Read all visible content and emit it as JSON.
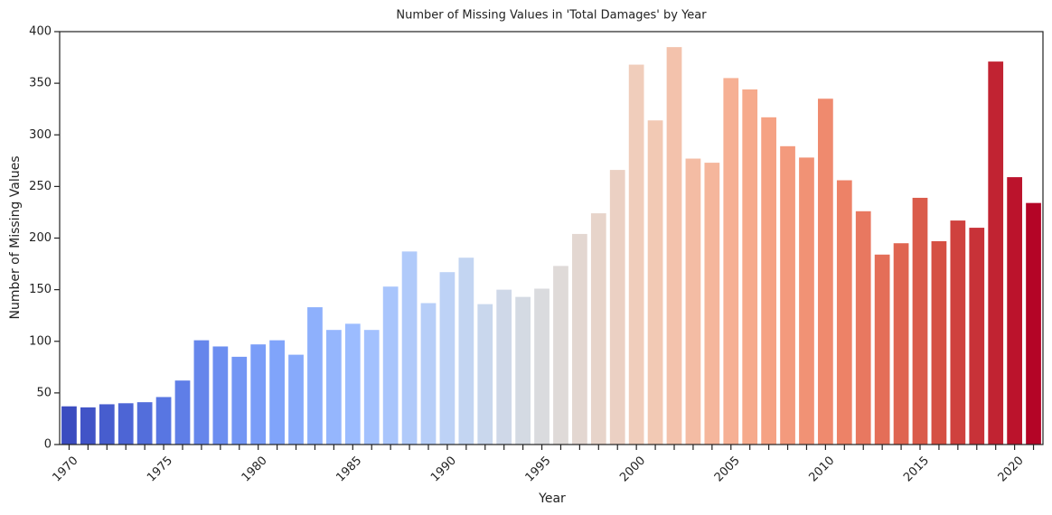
{
  "chart_data": {
    "type": "bar",
    "title": "Number of Missing Values in 'Total Damages' by Year",
    "xlabel": "Year",
    "ylabel": "Number of Missing Values",
    "categories": [
      "1970",
      null,
      null,
      null,
      null,
      "1975",
      null,
      null,
      null,
      null,
      "1980",
      null,
      null,
      null,
      null,
      "1985",
      null,
      null,
      null,
      null,
      "1990",
      null,
      null,
      null,
      null,
      "1995",
      null,
      null,
      null,
      null,
      "2000",
      null,
      null,
      null,
      null,
      "2005",
      null,
      null,
      null,
      null,
      "2010",
      null,
      null,
      null,
      null,
      "2015",
      null,
      null,
      null,
      null,
      "2020",
      null
    ],
    "values": [
      37,
      36,
      39,
      40,
      41,
      46,
      62,
      101,
      95,
      85,
      97,
      101,
      87,
      133,
      111,
      117,
      111,
      153,
      187,
      137,
      167,
      181,
      136,
      150,
      143,
      151,
      173,
      204,
      224,
      266,
      368,
      314,
      385,
      277,
      273,
      355,
      344,
      317,
      289,
      278,
      335,
      256,
      226,
      184,
      195,
      239,
      197,
      217,
      210,
      371,
      259,
      234
    ],
    "colors": [
      "#3b4cc0",
      "#5977e3",
      "#7b9ff9",
      "#9ebeff",
      "#c0d4f5",
      "#dddcdc",
      "#f2cbb7",
      "#f7ac8e",
      "#ee8468",
      "#d65244",
      "#b40426"
    ],
    "ylim": [
      0,
      400
    ],
    "yticks": [
      0,
      50,
      100,
      150,
      200,
      250,
      300,
      350,
      400
    ]
  }
}
